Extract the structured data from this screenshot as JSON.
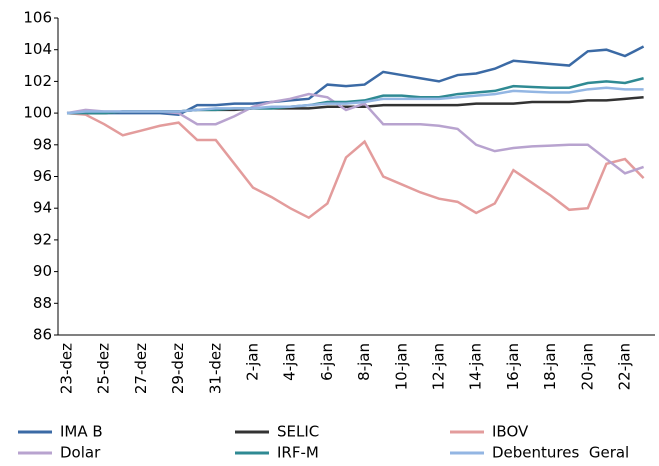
{
  "chart_data": {
    "type": "line",
    "categories": [
      "23-dez",
      null,
      "25-dez",
      null,
      "27-dez",
      null,
      "29-dez",
      null,
      "31-dez",
      null,
      "2-jan",
      null,
      "4-jan",
      null,
      "6-jan",
      null,
      "8-jan",
      null,
      "10-jan",
      null,
      "12-jan",
      null,
      "14-jan",
      null,
      "16-jan",
      null,
      "18-jan",
      null,
      "20-jan",
      null,
      "22-jan",
      null
    ],
    "series": [
      {
        "name": "IMA B",
        "color": "#3b6aa5",
        "values": [
          100.0,
          100.0,
          100.0,
          100.0,
          100.0,
          100.0,
          99.9,
          100.5,
          100.5,
          100.6,
          100.6,
          100.7,
          100.8,
          100.9,
          101.8,
          101.7,
          101.8,
          102.6,
          102.4,
          102.2,
          102.0,
          102.4,
          102.5,
          102.8,
          103.3,
          103.2,
          103.1,
          103.0,
          103.9,
          104.0,
          103.6,
          104.2
        ]
      },
      {
        "name": "SELIC",
        "color": "#333333",
        "values": [
          100.0,
          100.0,
          100.0,
          100.1,
          100.1,
          100.1,
          100.1,
          100.2,
          100.2,
          100.2,
          100.3,
          100.3,
          100.3,
          100.3,
          100.4,
          100.4,
          100.4,
          100.5,
          100.5,
          100.5,
          100.5,
          100.5,
          100.6,
          100.6,
          100.6,
          100.7,
          100.7,
          100.7,
          100.8,
          100.8,
          100.9,
          101.0
        ]
      },
      {
        "name": "IBOV",
        "color": "#e39c9c",
        "values": [
          100.0,
          99.9,
          99.3,
          98.6,
          98.9,
          99.2,
          99.4,
          98.3,
          98.3,
          96.8,
          95.3,
          94.7,
          94.0,
          93.4,
          94.3,
          97.2,
          98.2,
          96.0,
          95.5,
          95.0,
          94.6,
          94.4,
          93.7,
          94.3,
          96.4,
          95.6,
          94.8,
          93.9,
          94.0,
          96.8,
          97.1,
          95.9
        ]
      },
      {
        "name": "Dolar",
        "color": "#b8a3cf",
        "values": [
          100.0,
          100.2,
          100.1,
          100.1,
          100.1,
          100.1,
          100.0,
          99.3,
          99.3,
          99.8,
          100.4,
          100.7,
          100.9,
          101.2,
          101.0,
          100.2,
          100.6,
          99.3,
          99.3,
          99.3,
          99.2,
          99.0,
          98.0,
          97.6,
          97.8,
          97.9,
          97.95,
          98.0,
          98.0,
          97.1,
          96.2,
          96.6
        ]
      },
      {
        "name": "IRF-M",
        "color": "#2f8a93",
        "values": [
          100.0,
          100.0,
          100.0,
          100.1,
          100.1,
          100.1,
          100.1,
          100.2,
          100.2,
          100.3,
          100.3,
          100.3,
          100.4,
          100.5,
          100.7,
          100.7,
          100.8,
          101.1,
          101.1,
          101.0,
          101.0,
          101.2,
          101.3,
          101.4,
          101.7,
          101.65,
          101.6,
          101.6,
          101.9,
          102.0,
          101.9,
          102.2
        ]
      },
      {
        "name": "Debentures  Geral",
        "color": "#93b6e3",
        "values": [
          100.0,
          100.1,
          100.1,
          100.1,
          100.1,
          100.1,
          100.1,
          100.2,
          100.3,
          100.3,
          100.3,
          100.4,
          100.4,
          100.5,
          100.6,
          100.6,
          100.7,
          100.9,
          100.9,
          100.9,
          100.9,
          101.0,
          101.1,
          101.2,
          101.4,
          101.35,
          101.3,
          101.3,
          101.5,
          101.6,
          101.5,
          101.5
        ]
      }
    ],
    "ylim": [
      86,
      106
    ],
    "yticks": [
      86,
      88,
      90,
      92,
      94,
      96,
      98,
      100,
      102,
      104,
      106
    ],
    "grid": false,
    "legend": "bottom"
  }
}
